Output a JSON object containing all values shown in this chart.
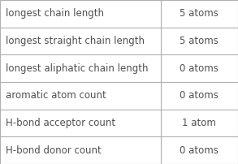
{
  "rows": [
    {
      "label": "longest chain length",
      "value": "5 atoms"
    },
    {
      "label": "longest straight chain length",
      "value": "5 atoms"
    },
    {
      "label": "longest aliphatic chain length",
      "value": "0 atoms"
    },
    {
      "label": "aromatic atom count",
      "value": "0 atoms"
    },
    {
      "label": "H-bond acceptor count",
      "value": "1 atom"
    },
    {
      "label": "H-bond donor count",
      "value": "0 atoms"
    }
  ],
  "col_split": 0.675,
  "background_color": "#ffffff",
  "border_color": "#b0b0b0",
  "text_color_label": "#505050",
  "text_color_value": "#505050",
  "font_size": 8.5,
  "fig_width": 2.93,
  "fig_height": 2.02,
  "dpi": 100
}
